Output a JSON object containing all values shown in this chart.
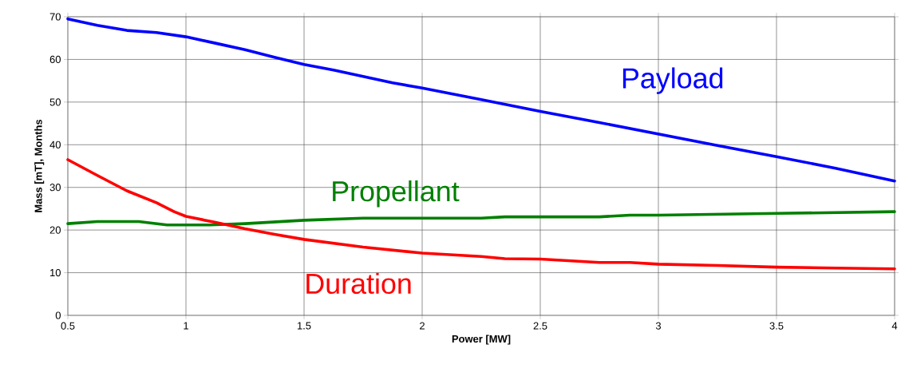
{
  "chart_data": {
    "type": "line",
    "xlabel": "Power [MW]",
    "ylabel": "Mass [mT], Months",
    "xlim": [
      0.5,
      4
    ],
    "xticks": [
      0.5,
      1,
      1.5,
      2,
      2.5,
      3,
      3.5,
      4
    ],
    "ylim": [
      0,
      70
    ],
    "yticks": [
      0,
      10,
      20,
      30,
      40,
      50,
      60,
      70
    ],
    "grid": true,
    "legend": false,
    "marker": "none",
    "line_style": "solid",
    "series": [
      {
        "name": "Payload",
        "color": "#0000ff",
        "x": [
          0.5,
          0.625,
          0.75,
          0.875,
          1.0,
          1.125,
          1.25,
          1.375,
          1.5,
          1.625,
          1.75,
          1.875,
          2.0,
          2.25,
          2.5,
          2.75,
          3.0,
          3.25,
          3.5,
          3.75,
          4.0
        ],
        "values": [
          69.5,
          68,
          66.8,
          66.3,
          65.3,
          63.8,
          62.3,
          60.5,
          58.8,
          57.5,
          56,
          54.5,
          53.3,
          50.6,
          47.8,
          45.2,
          42.5,
          39.8,
          37.2,
          34.5,
          31.5
        ]
      },
      {
        "name": "Propellant",
        "color": "#008000",
        "x": [
          0.5,
          0.625,
          0.8,
          0.92,
          1.1,
          1.25,
          1.5,
          1.75,
          2.0,
          2.25,
          2.35,
          2.75,
          2.88,
          3.0,
          3.5,
          4.0
        ],
        "values": [
          21.5,
          22,
          22,
          21.2,
          21.2,
          21.5,
          22.3,
          22.8,
          22.8,
          22.8,
          23.1,
          23.1,
          23.5,
          23.5,
          23.9,
          24.3
        ]
      },
      {
        "name": "Duration",
        "color": "#ff0000",
        "x": [
          0.5,
          0.625,
          0.75,
          0.875,
          0.95,
          1.0,
          1.125,
          1.25,
          1.375,
          1.5,
          1.75,
          2.0,
          2.25,
          2.35,
          2.5,
          2.75,
          2.88,
          3.0,
          3.25,
          3.5,
          3.75,
          4.0
        ],
        "values": [
          36.5,
          32.8,
          29.2,
          26.4,
          24.3,
          23.2,
          21.8,
          20.3,
          19,
          17.8,
          16,
          14.6,
          13.8,
          13.3,
          13.2,
          12.4,
          12.4,
          12,
          11.7,
          11.3,
          11.1,
          10.9
        ]
      }
    ]
  }
}
